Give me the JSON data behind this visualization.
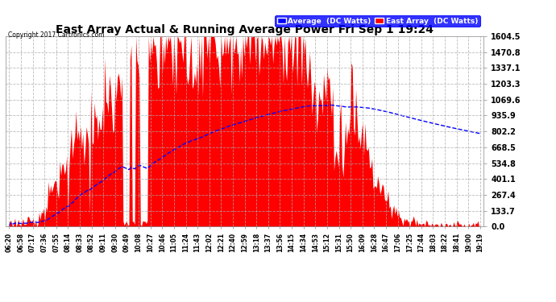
{
  "title": "East Array Actual & Running Average Power Fri Sep 1 19:24",
  "copyright": "Copyright 2017 Cartronics.com",
  "legend_avg": "Average  (DC Watts)",
  "legend_east": "East Array  (DC Watts)",
  "yticks": [
    0.0,
    133.7,
    267.4,
    401.1,
    534.8,
    668.5,
    802.2,
    935.9,
    1069.6,
    1203.3,
    1337.1,
    1470.8,
    1604.5
  ],
  "ymax": 1604.5,
  "bg_color": "#ffffff",
  "plot_bg_color": "#ffffff",
  "grid_color": "#aaaaaa",
  "red_color": "#ff0000",
  "blue_color": "#0000ff",
  "xtick_labels": [
    "06:20",
    "06:58",
    "07:17",
    "07:36",
    "07:55",
    "08:14",
    "08:33",
    "08:52",
    "09:11",
    "09:30",
    "09:49",
    "10:08",
    "10:27",
    "10:46",
    "11:05",
    "11:24",
    "11:43",
    "12:02",
    "12:21",
    "12:40",
    "12:59",
    "13:18",
    "13:37",
    "13:56",
    "14:15",
    "14:34",
    "14:53",
    "15:12",
    "15:31",
    "15:50",
    "16:09",
    "16:28",
    "16:47",
    "17:06",
    "17:25",
    "17:44",
    "18:03",
    "18:22",
    "18:41",
    "19:00",
    "19:19"
  ],
  "n_xticks": 41
}
